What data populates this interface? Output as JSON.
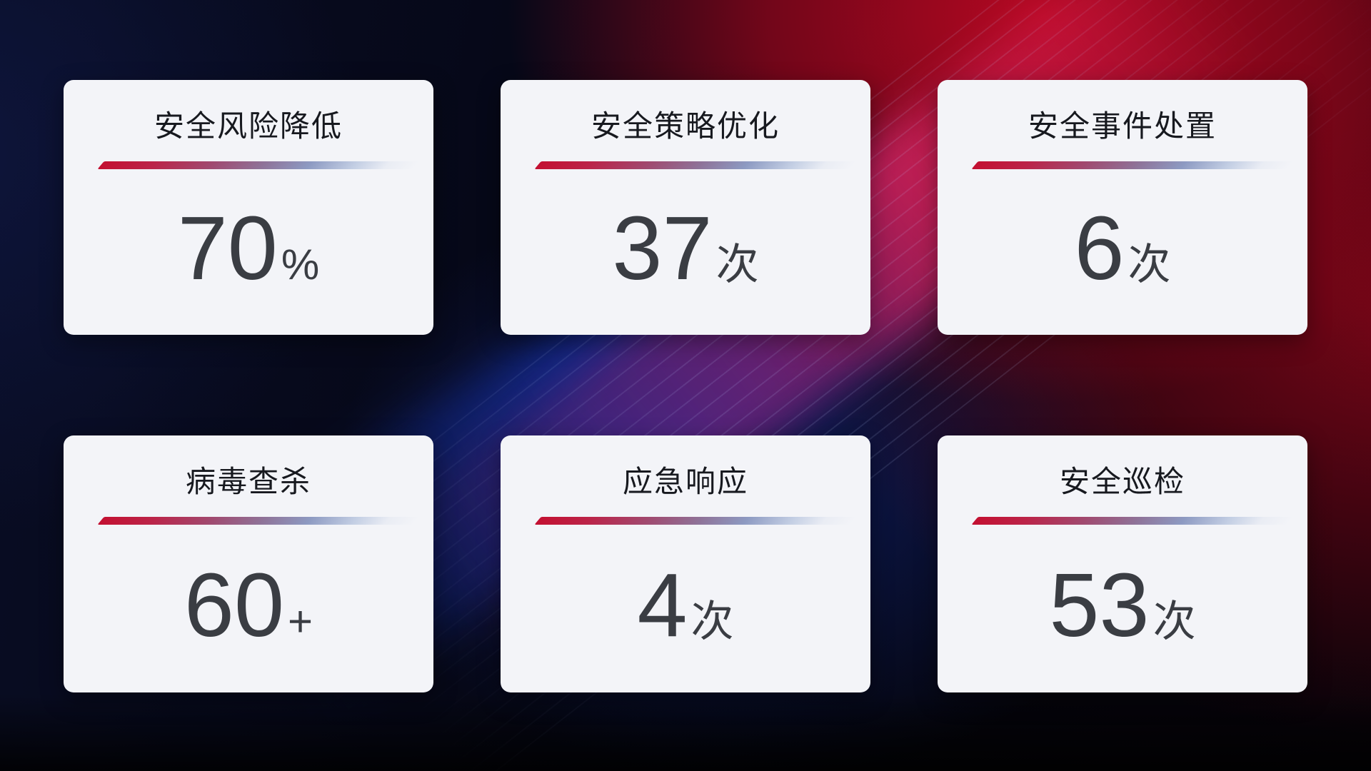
{
  "theme": {
    "card_background": "#f3f4f8",
    "title_color": "#17191f",
    "number_color": "#3a3d43",
    "divider_red": "#c31031",
    "divider_blue": "#8d9ac2",
    "background_navy": "#060818",
    "background_red": "#9e0614",
    "background_blue_glow": "#1c38be",
    "background_magenta_band": "#ec2a6e"
  },
  "cards": [
    {
      "id": "risk-reduction",
      "title": "安全风险降低",
      "value": "70",
      "unit": "%"
    },
    {
      "id": "policy-optimization",
      "title": "安全策略优化",
      "value": "37",
      "unit": "次"
    },
    {
      "id": "incident-handling",
      "title": "安全事件处置",
      "value": "6",
      "unit": "次"
    },
    {
      "id": "virus-scan",
      "title": "病毒查杀",
      "value": "60",
      "unit": "+"
    },
    {
      "id": "emergency-response",
      "title": "应急响应",
      "value": "4",
      "unit": "次"
    },
    {
      "id": "security-inspection",
      "title": "安全巡检",
      "value": "53",
      "unit": "次"
    }
  ]
}
